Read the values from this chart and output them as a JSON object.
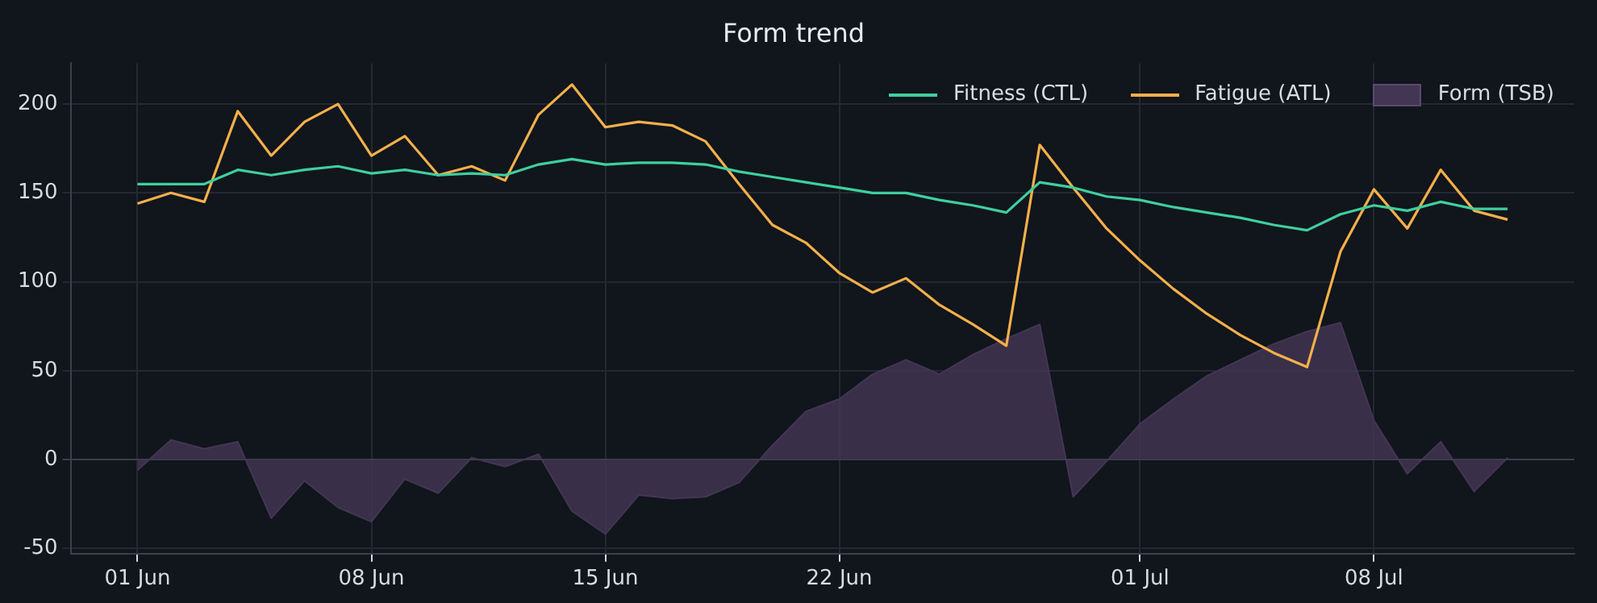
{
  "chart_data": {
    "type": "line",
    "title": "Form trend",
    "x": [
      "--06-01",
      "--06-02",
      "--06-03",
      "--06-04",
      "--06-05",
      "--06-06",
      "--06-07",
      "--06-08",
      "--06-09",
      "--06-10",
      "--06-11",
      "--06-12",
      "--06-13",
      "--06-14",
      "--06-15",
      "--06-16",
      "--06-17",
      "--06-18",
      "--06-19",
      "--06-20",
      "--06-21",
      "--06-22",
      "--06-23",
      "--06-24",
      "--06-25",
      "--06-26",
      "--06-27",
      "--06-28",
      "--06-29",
      "--06-30",
      "--07-01",
      "--07-02",
      "--07-03",
      "--07-04",
      "--07-05",
      "--07-06",
      "--07-07",
      "--07-08",
      "--07-09",
      "--07-10",
      "--07-11",
      "--07-12"
    ],
    "series": [
      {
        "name": "Fitness (CTL)",
        "type": "line",
        "color": "#3ecf9e",
        "values": [
          155,
          155,
          155,
          163,
          160,
          163,
          165,
          161,
          163,
          160,
          161,
          160,
          166,
          169,
          166,
          167,
          167,
          166,
          162,
          159,
          156,
          153,
          150,
          150,
          146,
          143,
          139,
          156,
          153,
          148,
          146,
          142,
          139,
          136,
          132,
          129,
          138,
          143,
          140,
          145,
          141,
          141
        ]
      },
      {
        "name": "Fatigue (ATL)",
        "type": "line",
        "color": "#f5b04a",
        "values": [
          144,
          150,
          145,
          196,
          171,
          190,
          200,
          171,
          182,
          160,
          165,
          157,
          194,
          211,
          187,
          190,
          188,
          179,
          155,
          132,
          122,
          105,
          94,
          102,
          87,
          76,
          64,
          177,
          153,
          130,
          112,
          96,
          82,
          70,
          60,
          52,
          117,
          152,
          130,
          163,
          140,
          135
        ]
      },
      {
        "name": "Form (TSB)",
        "type": "area",
        "color": "#433654",
        "values": [
          -6,
          11,
          6,
          10,
          -33,
          -12,
          -27,
          -35,
          -11,
          -19,
          1,
          -4,
          3,
          -29,
          -42,
          -20,
          -22,
          -21,
          -13,
          8,
          27,
          34,
          48,
          56,
          48,
          59,
          68,
          76,
          -21,
          -1,
          20,
          34,
          47,
          56,
          65,
          72,
          77,
          22,
          -8,
          10,
          -18,
          1
        ]
      }
    ],
    "xlim": [
      "--05-30",
      "--07-14"
    ],
    "xticks": [
      {
        "value": "--06-01",
        "label": "01 Jun"
      },
      {
        "value": "--06-08",
        "label": "08 Jun"
      },
      {
        "value": "--06-15",
        "label": "15 Jun"
      },
      {
        "value": "--06-22",
        "label": "22 Jun"
      },
      {
        "value": "--07-01",
        "label": "01 Jul"
      },
      {
        "value": "--07-08",
        "label": "08 Jul"
      }
    ],
    "ylim": [
      -53,
      223
    ],
    "yticks": [
      -50,
      0,
      50,
      100,
      150,
      200
    ],
    "grid": true,
    "legend": "top right",
    "marker": "none",
    "line_style": "solid"
  }
}
